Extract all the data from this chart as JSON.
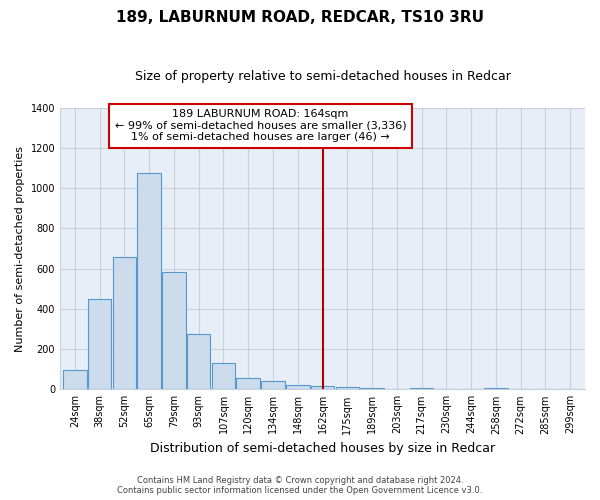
{
  "title": "189, LABURNUM ROAD, REDCAR, TS10 3RU",
  "subtitle": "Size of property relative to semi-detached houses in Redcar",
  "xlabel": "Distribution of semi-detached houses by size in Redcar",
  "ylabel": "Number of semi-detached properties",
  "bar_labels": [
    "24sqm",
    "38sqm",
    "52sqm",
    "65sqm",
    "79sqm",
    "93sqm",
    "107sqm",
    "120sqm",
    "134sqm",
    "148sqm",
    "162sqm",
    "175sqm",
    "189sqm",
    "203sqm",
    "217sqm",
    "230sqm",
    "244sqm",
    "258sqm",
    "272sqm",
    "285sqm",
    "299sqm"
  ],
  "bar_values": [
    95,
    450,
    660,
    1075,
    585,
    275,
    130,
    55,
    40,
    20,
    15,
    10,
    5,
    0,
    5,
    0,
    0,
    5,
    0,
    0,
    0
  ],
  "bar_color": "#ccdcec",
  "bar_edge_color": "#5599cc",
  "vline_x_index": 10,
  "vline_color": "#aa0000",
  "annotation_title": "189 LABURNUM ROAD: 164sqm",
  "annotation_line1": "← 99% of semi-detached houses are smaller (3,336)",
  "annotation_line2": "1% of semi-detached houses are larger (46) →",
  "annotation_box_color": "#ffffff",
  "annotation_box_edge": "#cc0000",
  "ylim": [
    0,
    1400
  ],
  "yticks": [
    0,
    200,
    400,
    600,
    800,
    1000,
    1200,
    1400
  ],
  "footer_line1": "Contains HM Land Registry data © Crown copyright and database right 2024.",
  "footer_line2": "Contains public sector information licensed under the Open Government Licence v3.0.",
  "bg_color": "#ffffff",
  "plot_bg_color": "#e8eef8",
  "grid_color": "#c8d0dc",
  "title_fontsize": 11,
  "subtitle_fontsize": 9,
  "annotation_fontsize": 8,
  "ylabel_fontsize": 8,
  "xlabel_fontsize": 9,
  "tick_fontsize": 7,
  "footer_fontsize": 6
}
